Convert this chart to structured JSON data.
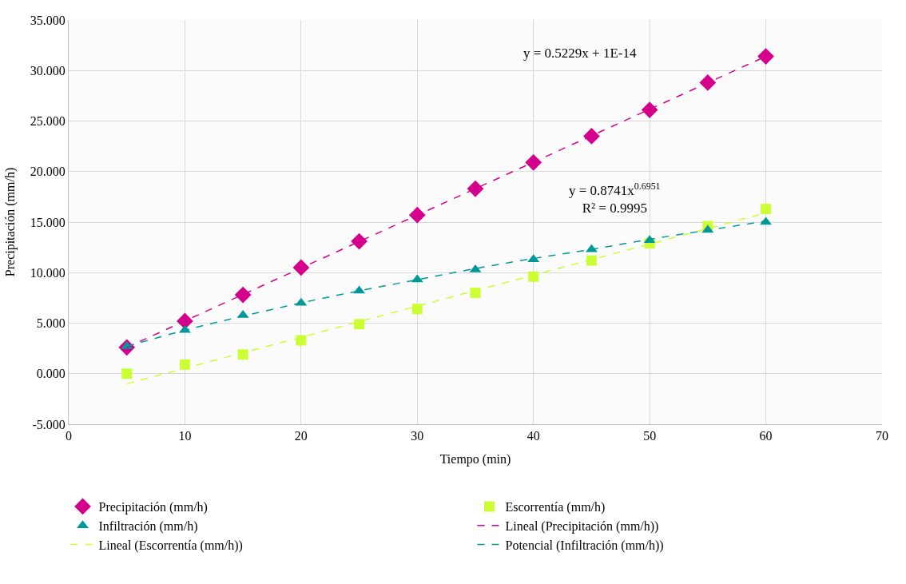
{
  "chart_data": {
    "type": "scatter",
    "xlabel": "Tiempo (min)",
    "ylabel": "Precipitación (mm/h)",
    "xlim": [
      0,
      70
    ],
    "xticks": [
      0,
      10,
      20,
      30,
      40,
      50,
      60,
      70
    ],
    "ylim": [
      -5,
      35
    ],
    "yticks": [
      {
        "value": -5,
        "label": "-5.000"
      },
      {
        "value": 0,
        "label": "0.000"
      },
      {
        "value": 5,
        "label": "5.000"
      },
      {
        "value": 10,
        "label": "10.000"
      },
      {
        "value": 15,
        "label": "15.000"
      },
      {
        "value": 20,
        "label": "20.000"
      },
      {
        "value": 25,
        "label": "25.000"
      },
      {
        "value": 30,
        "label": "30.000"
      },
      {
        "value": 35,
        "label": "35.000"
      }
    ],
    "x": [
      5,
      10,
      15,
      20,
      25,
      30,
      35,
      40,
      45,
      50,
      55,
      60
    ],
    "grid": true,
    "legend": "bottom",
    "series": [
      {
        "name": "Precipitación (mm/h)",
        "color": "#d4008c",
        "marker": "diamond",
        "values": [
          2.6,
          5.2,
          7.8,
          10.5,
          13.1,
          15.7,
          18.3,
          20.9,
          23.5,
          26.1,
          28.8,
          31.4
        ]
      },
      {
        "name": "Escorrentía (mm/h)",
        "color": "#ccff33",
        "marker": "square",
        "values": [
          0.0,
          0.9,
          1.9,
          3.3,
          4.9,
          6.4,
          8.0,
          9.6,
          11.2,
          12.9,
          14.6,
          16.3
        ]
      },
      {
        "name": "Infiltración (mm/h)",
        "color": "#009999",
        "marker": "triangle",
        "values": [
          2.7,
          4.3,
          5.8,
          7.0,
          8.2,
          9.3,
          10.3,
          11.3,
          12.3,
          13.2,
          14.2,
          15.0
        ]
      },
      {
        "name": "Lineal (Precipitación (mm/h))",
        "type": "line",
        "color": "#d4008c",
        "line_style": "dashed",
        "marker": "none",
        "x": [
          5,
          60
        ],
        "values": [
          2.6,
          31.4
        ]
      },
      {
        "name": "Lineal (Escorrentía (mm/h))",
        "type": "line",
        "color": "#ccff33",
        "line_style": "dashed",
        "marker": "none",
        "x": [
          5,
          60
        ],
        "values": [
          -1.0,
          15.9
        ]
      },
      {
        "name": "Potencial (Infiltración (mm/h))",
        "type": "line",
        "color": "#009999",
        "line_style": "dashed",
        "marker": "none",
        "x": [
          5,
          10,
          15,
          20,
          25,
          30,
          35,
          40,
          45,
          50,
          55,
          60
        ],
        "values": [
          2.7,
          4.3,
          5.7,
          7.0,
          8.2,
          9.3,
          10.4,
          11.4,
          12.3,
          13.3,
          14.2,
          15.1
        ]
      }
    ],
    "annotations": [
      "y = 0.5229x + 1E-14",
      "y = 0.8741x$^{0.6951}$\nR² = 0.9995"
    ]
  }
}
